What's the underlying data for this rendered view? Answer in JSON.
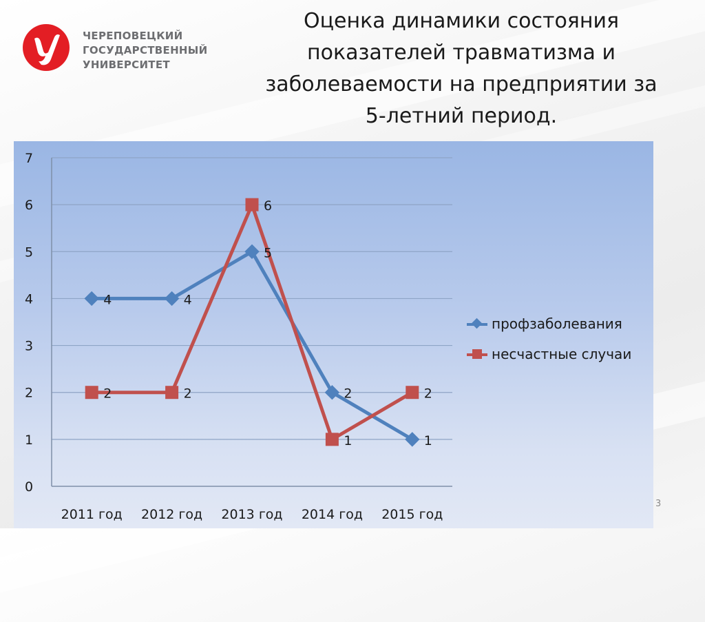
{
  "logo": {
    "line1": "ЧЕРЕПОВЕЦКИЙ",
    "line2": "ГОСУДАРСТВЕННЫЙ",
    "line3": "УНИВЕРСИТЕТ",
    "color": "#e31e24"
  },
  "title": {
    "line1": "Оценка динамики состояния",
    "line2": "показателей травматизма и",
    "line3": "заболеваемости на предприятии за",
    "line4": "5-летний период."
  },
  "page_number": "3",
  "chart_data": {
    "type": "line",
    "categories": [
      "2011 год",
      "2012 год",
      "2013 год",
      "2014 год",
      "2015 год"
    ],
    "ylim": [
      0,
      7
    ],
    "yticks": [
      "0",
      "1",
      "2",
      "3",
      "4",
      "5",
      "6",
      "7"
    ],
    "grid": true,
    "legend_position": "right",
    "series": [
      {
        "name": "профзаболевания",
        "values": [
          4,
          4,
          5,
          2,
          1
        ],
        "color": "#4f81bd",
        "marker": "diamond"
      },
      {
        "name": "несчастные случаи",
        "values": [
          2,
          2,
          6,
          1,
          2
        ],
        "color": "#c0504d",
        "marker": "square"
      }
    ]
  }
}
